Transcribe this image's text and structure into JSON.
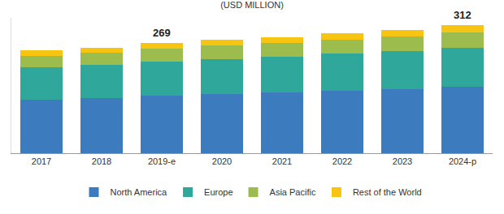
{
  "chart_data": {
    "type": "bar",
    "title": "(USD MILLION)",
    "stacked": true,
    "categories": [
      "2017",
      "2018",
      "2019-e",
      "2020",
      "2021",
      "2022",
      "2023",
      "2024-p"
    ],
    "series": [
      {
        "name": "North America",
        "color": "#3c7bbd",
        "values": [
          130,
          134,
          140,
          144,
          148,
          153,
          157,
          162
        ]
      },
      {
        "name": "Europe",
        "color": "#2fa79a",
        "values": [
          80,
          82,
          84,
          86,
          88,
          90,
          92,
          95
        ]
      },
      {
        "name": "Asia Pacific",
        "color": "#9cbc4e",
        "values": [
          28,
          29,
          31,
          32,
          33,
          34,
          36,
          38
        ]
      },
      {
        "name": "Rest of the World",
        "color": "#f7c412",
        "values": [
          12,
          12,
          14,
          14,
          14,
          15,
          16,
          17
        ]
      }
    ],
    "totals": [
      null,
      null,
      269,
      null,
      null,
      null,
      null,
      312
    ],
    "ylim": [
      0,
      330
    ],
    "yticks": [],
    "tick_labels": "x",
    "grid": false,
    "legend": "bottom"
  }
}
